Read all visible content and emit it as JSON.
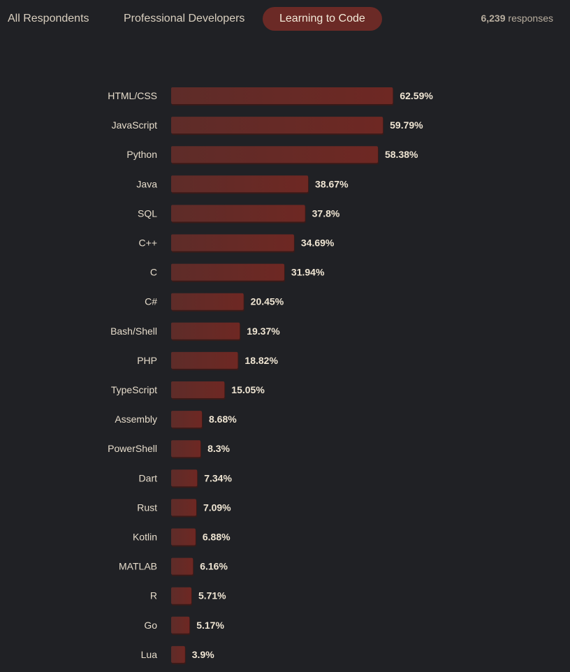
{
  "tabs": [
    {
      "label": "All Respondents",
      "active": false
    },
    {
      "label": "Professional Developers",
      "active": false
    },
    {
      "label": "Learning to Code",
      "active": true
    }
  ],
  "responses": {
    "count": "6,239",
    "label": "responses"
  },
  "colors": {
    "background": "#202125",
    "bar": "#6b2a26",
    "active_tab": "#6b2a26"
  },
  "chart_data": {
    "type": "bar",
    "orientation": "horizontal",
    "categories": [
      "HTML/CSS",
      "JavaScript",
      "Python",
      "Java",
      "SQL",
      "C++",
      "C",
      "C#",
      "Bash/Shell",
      "PHP",
      "TypeScript",
      "Assembly",
      "PowerShell",
      "Dart",
      "Rust",
      "Kotlin",
      "MATLAB",
      "R",
      "Go",
      "Lua"
    ],
    "values": [
      62.59,
      59.79,
      58.38,
      38.67,
      37.8,
      34.69,
      31.94,
      20.45,
      19.37,
      18.82,
      15.05,
      8.68,
      8.3,
      7.34,
      7.09,
      6.88,
      6.16,
      5.71,
      5.17,
      3.9
    ],
    "value_labels": [
      "62.59%",
      "59.79%",
      "58.38%",
      "38.67%",
      "37.8%",
      "34.69%",
      "31.94%",
      "20.45%",
      "19.37%",
      "18.82%",
      "15.05%",
      "8.68%",
      "8.3%",
      "7.34%",
      "7.09%",
      "6.88%",
      "6.16%",
      "5.71%",
      "5.17%",
      "3.9%"
    ],
    "unit": "%",
    "xlim": [
      0,
      100
    ],
    "grid": false
  }
}
